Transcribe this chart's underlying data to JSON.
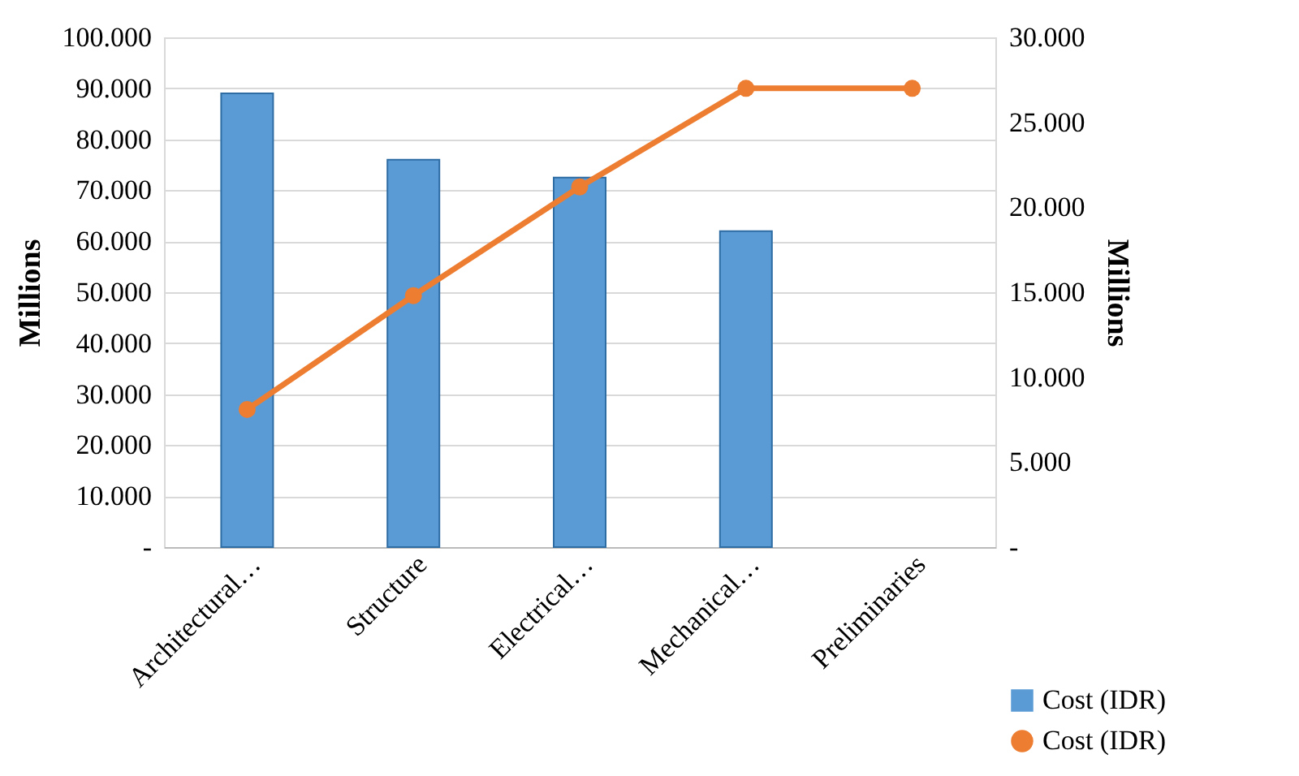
{
  "chart_data": {
    "type": "bar",
    "categories": [
      "Architectural…",
      "Structure",
      "Electrical…",
      "Mechanical…",
      "Preliminaries"
    ],
    "series": [
      {
        "name": "Cost (IDR)",
        "color": "#5b9bd5",
        "values": [
          89,
          76,
          72.5,
          62,
          null
        ]
      },
      {
        "name": "Cost (IDR)",
        "type": "line",
        "axis": "y2",
        "color": "#ed7d31",
        "values": [
          8.1,
          14.8,
          21.2,
          27,
          27
        ]
      }
    ],
    "ylabel": "Millions",
    "y2label": "Millions",
    "ylim": [
      0,
      100
    ],
    "yticks": [
      {
        "value": 0,
        "label": "-"
      },
      {
        "value": 10,
        "label": "10.000"
      },
      {
        "value": 20,
        "label": "20.000"
      },
      {
        "value": 30,
        "label": "30.000"
      },
      {
        "value": 40,
        "label": "40.000"
      },
      {
        "value": 50,
        "label": "50.000"
      },
      {
        "value": 60,
        "label": "60.000"
      },
      {
        "value": 70,
        "label": "70.000"
      },
      {
        "value": 80,
        "label": "80.000"
      },
      {
        "value": 90,
        "label": "90.000"
      },
      {
        "value": 100,
        "label": "100.000"
      }
    ],
    "y2lim": [
      0,
      30
    ],
    "y2ticks": [
      {
        "value": 0,
        "label": "-"
      },
      {
        "value": 5,
        "label": "5.000"
      },
      {
        "value": 10,
        "label": "10.000"
      },
      {
        "value": 15,
        "label": "15.000"
      },
      {
        "value": 20,
        "label": "20.000"
      },
      {
        "value": 25,
        "label": "25.000"
      },
      {
        "value": 30,
        "label": "30.000"
      }
    ],
    "grid": "y",
    "legend": "bottom right",
    "marker": "circle",
    "line_style": "solid"
  }
}
